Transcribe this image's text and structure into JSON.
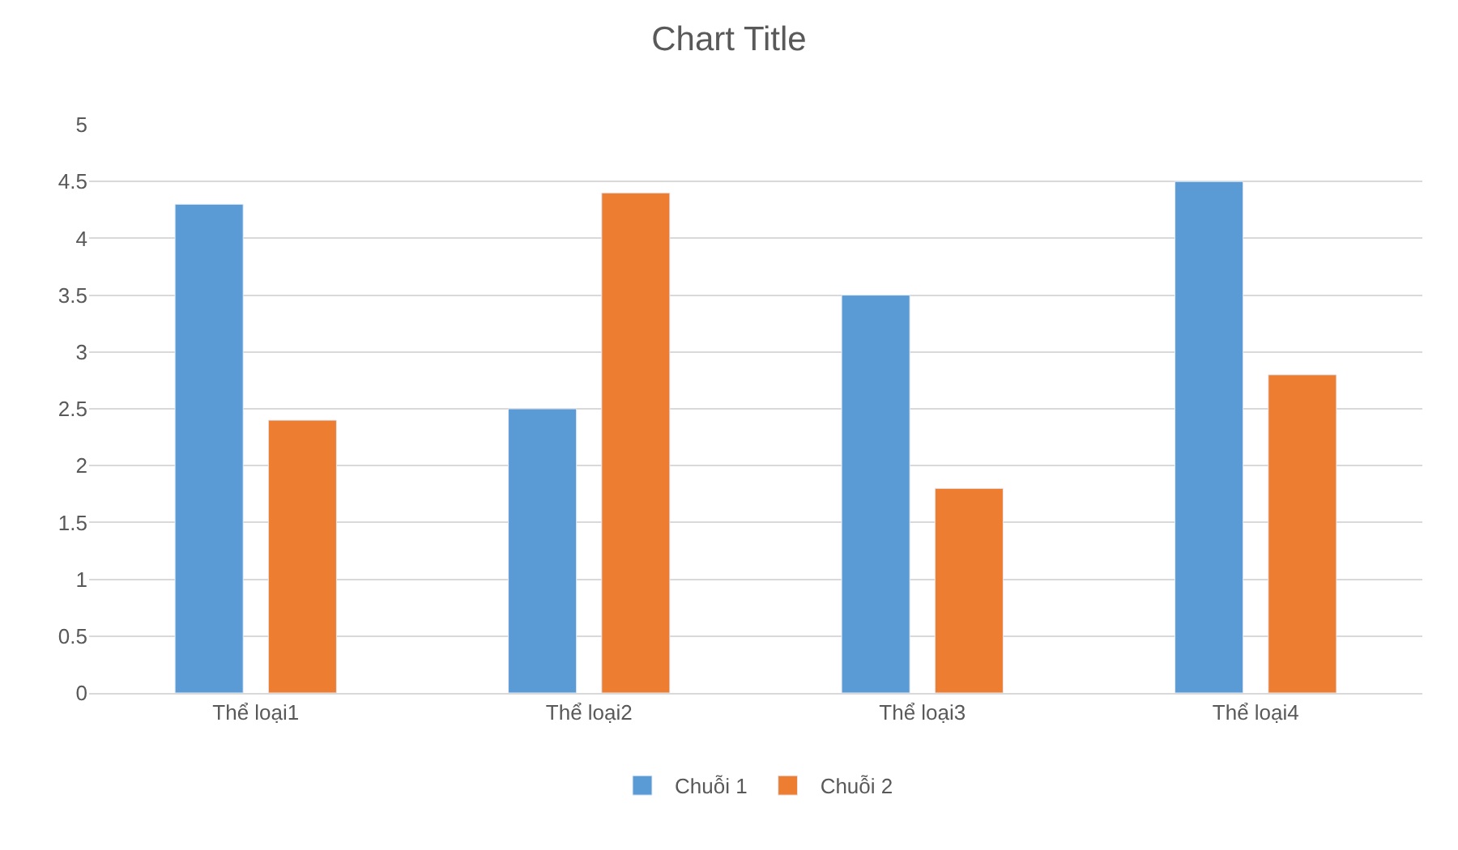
{
  "chart_data": {
    "type": "bar",
    "title": "Chart Title",
    "categories": [
      "Thể loại1",
      "Thể loại2",
      "Thể loại3",
      "Thể loại4"
    ],
    "series": [
      {
        "name": "Chuỗi 1",
        "color": "#5b9bd5",
        "values": [
          4.3,
          2.5,
          3.5,
          4.5
        ]
      },
      {
        "name": "Chuỗi 2",
        "color": "#ed7d31",
        "values": [
          2.4,
          4.4,
          1.8,
          2.8
        ]
      }
    ],
    "ylim": [
      0,
      5
    ],
    "yticks": [
      0,
      0.5,
      1,
      1.5,
      2,
      2.5,
      3,
      3.5,
      4,
      4.5,
      5
    ],
    "grid": "y",
    "legend": "bottom"
  }
}
